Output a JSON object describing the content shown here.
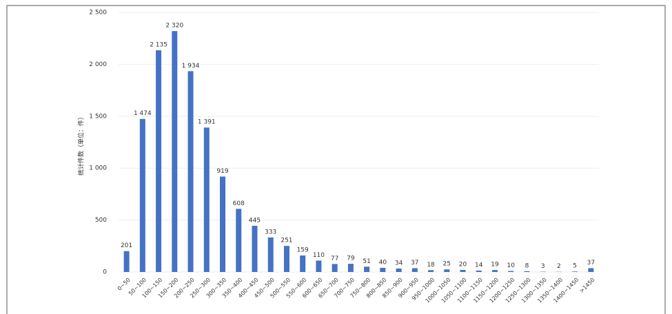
{
  "chart_data": {
    "type": "bar",
    "y_label": "统计件数（单位：件）",
    "categories": [
      "0~50",
      "50~100",
      "100~150",
      "150~200",
      "200~250",
      "250~300",
      "300~350",
      "350~400",
      "400~450",
      "450~500",
      "500~550",
      "550~600",
      "600~650",
      "650~700",
      "700~750",
      "750~800",
      "800~850",
      "850~900",
      "900~950",
      "950~1000",
      "1000~1050",
      "1050~1100",
      "1100~1150",
      "1150~1200",
      "1200~1250",
      "1250~1300",
      "1300~1350",
      "1350~1400",
      "1400~1450",
      ">1450"
    ],
    "values": [
      201,
      1474,
      2135,
      2320,
      1934,
      1391,
      919,
      608,
      445,
      333,
      251,
      159,
      110,
      77,
      79,
      51,
      40,
      34,
      37,
      18,
      25,
      20,
      14,
      19,
      10,
      8,
      3,
      2,
      5,
      37
    ],
    "value_labels": [
      "201",
      "1 474",
      "2 135",
      "2 320",
      "1 934",
      "1 391",
      "919",
      "608",
      "445",
      "333",
      "251",
      "159",
      "110",
      "77",
      "79",
      "51",
      "40",
      "34",
      "37",
      "18",
      "25",
      "20",
      "14",
      "19",
      "10",
      "8",
      "3",
      "2",
      "5",
      "37"
    ],
    "color": "#4472c4",
    "ylim": [
      0,
      2500
    ],
    "yticks": [
      0,
      500,
      {
        "value": 1000,
        "label": "1 000"
      },
      {
        "value": 1500,
        "label": "1 500"
      },
      {
        "value": 2000,
        "label": "2 000"
      },
      {
        "value": 2500,
        "label": "2 500"
      }
    ],
    "grid": true
  }
}
